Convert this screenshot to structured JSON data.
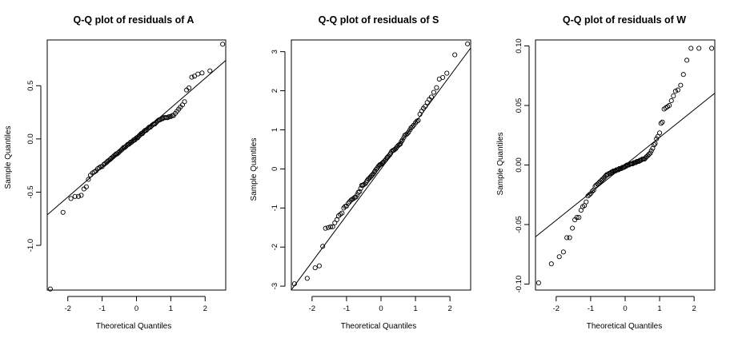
{
  "chart_data": [
    {
      "type": "scatter",
      "title": "Q-Q plot of residuals of A",
      "xlabel": "Theoretical Quantiles",
      "ylabel": "Sample Quantiles",
      "xlim": [
        -2.6,
        2.6
      ],
      "ylim": [
        -1.42,
        0.93
      ],
      "xticks": [
        -2,
        -1,
        0,
        1,
        2
      ],
      "yticks": [
        -1.0,
        -0.5,
        0.0,
        0.5
      ],
      "ytick_labels": [
        "-1.0",
        "-0.5",
        "0.0",
        "0.5"
      ],
      "reference_line": {
        "intercept": 0.012,
        "slope": 0.279
      },
      "x": [
        -2.51,
        -2.14,
        -1.91,
        -1.79,
        -1.69,
        -1.61,
        -1.53,
        -1.46,
        -1.4,
        -1.34,
        -1.28,
        -1.23,
        -1.18,
        -1.13,
        -1.08,
        -1.04,
        -1.0,
        -0.95,
        -0.91,
        -0.87,
        -0.84,
        -0.8,
        -0.76,
        -0.73,
        -0.69,
        -0.66,
        -0.62,
        -0.59,
        -0.56,
        -0.53,
        -0.5,
        -0.46,
        -0.43,
        -0.4,
        -0.37,
        -0.34,
        -0.31,
        -0.28,
        -0.25,
        -0.22,
        -0.19,
        -0.17,
        -0.14,
        -0.11,
        -0.08,
        -0.05,
        -0.03,
        0.0,
        0.03,
        0.05,
        0.08,
        0.11,
        0.14,
        0.17,
        0.19,
        0.22,
        0.25,
        0.28,
        0.31,
        0.34,
        0.37,
        0.4,
        0.43,
        0.46,
        0.5,
        0.53,
        0.56,
        0.59,
        0.62,
        0.66,
        0.69,
        0.73,
        0.76,
        0.8,
        0.84,
        0.87,
        0.91,
        0.95,
        1.0,
        1.04,
        1.08,
        1.13,
        1.18,
        1.23,
        1.28,
        1.34,
        1.4,
        1.46,
        1.53,
        1.61,
        1.69,
        1.79,
        1.91,
        2.14,
        2.51
      ],
      "y": [
        -1.41,
        -0.69,
        -0.56,
        -0.54,
        -0.54,
        -0.53,
        -0.47,
        -0.45,
        -0.38,
        -0.34,
        -0.32,
        -0.31,
        -0.3,
        -0.28,
        -0.27,
        -0.26,
        -0.26,
        -0.24,
        -0.23,
        -0.22,
        -0.21,
        -0.2,
        -0.19,
        -0.18,
        -0.17,
        -0.16,
        -0.15,
        -0.14,
        -0.14,
        -0.13,
        -0.12,
        -0.11,
        -0.1,
        -0.09,
        -0.08,
        -0.08,
        -0.07,
        -0.06,
        -0.05,
        -0.05,
        -0.04,
        -0.03,
        -0.03,
        -0.02,
        -0.01,
        -0.01,
        0.0,
        0.01,
        0.01,
        0.02,
        0.03,
        0.04,
        0.05,
        0.05,
        0.06,
        0.07,
        0.08,
        0.08,
        0.09,
        0.1,
        0.11,
        0.11,
        0.12,
        0.13,
        0.14,
        0.14,
        0.15,
        0.16,
        0.17,
        0.18,
        0.18,
        0.19,
        0.19,
        0.2,
        0.2,
        0.2,
        0.2,
        0.21,
        0.21,
        0.22,
        0.22,
        0.24,
        0.26,
        0.28,
        0.3,
        0.32,
        0.35,
        0.46,
        0.48,
        0.58,
        0.59,
        0.61,
        0.62,
        0.64,
        0.89
      ]
    },
    {
      "type": "scatter",
      "title": "Q-Q plot of residuals of S",
      "xlabel": "Theoretical Quantiles",
      "ylabel": "Sample Quantiles",
      "xlim": [
        -2.6,
        2.6
      ],
      "ylim": [
        -3.1,
        3.3
      ],
      "xticks": [
        -2,
        -1,
        0,
        1,
        2
      ],
      "yticks": [
        -3,
        -2,
        -1,
        0,
        1,
        2,
        3
      ],
      "ytick_labels": [
        "-3",
        "-2",
        "-1",
        "0",
        "1",
        "2",
        "3"
      ],
      "reference_line": {
        "intercept": 0.0,
        "slope": 1.19
      },
      "x": [
        -2.51,
        -2.14,
        -1.91,
        -1.79,
        -1.69,
        -1.61,
        -1.53,
        -1.46,
        -1.4,
        -1.34,
        -1.28,
        -1.23,
        -1.18,
        -1.13,
        -1.08,
        -1.04,
        -1.0,
        -0.95,
        -0.91,
        -0.87,
        -0.84,
        -0.8,
        -0.76,
        -0.73,
        -0.69,
        -0.66,
        -0.62,
        -0.59,
        -0.56,
        -0.53,
        -0.5,
        -0.46,
        -0.43,
        -0.4,
        -0.37,
        -0.34,
        -0.31,
        -0.28,
        -0.25,
        -0.22,
        -0.19,
        -0.17,
        -0.14,
        -0.11,
        -0.08,
        -0.05,
        -0.03,
        0.0,
        0.03,
        0.05,
        0.08,
        0.11,
        0.14,
        0.17,
        0.19,
        0.22,
        0.25,
        0.28,
        0.31,
        0.34,
        0.37,
        0.4,
        0.43,
        0.46,
        0.5,
        0.53,
        0.56,
        0.59,
        0.62,
        0.66,
        0.69,
        0.73,
        0.76,
        0.8,
        0.84,
        0.87,
        0.91,
        0.95,
        1.0,
        1.04,
        1.08,
        1.13,
        1.18,
        1.23,
        1.28,
        1.34,
        1.4,
        1.46,
        1.53,
        1.61,
        1.69,
        1.79,
        1.91,
        2.14,
        2.51
      ],
      "y": [
        -2.94,
        -2.8,
        -2.53,
        -2.48,
        -1.98,
        -1.52,
        -1.5,
        -1.48,
        -1.48,
        -1.38,
        -1.3,
        -1.2,
        -1.16,
        -1.13,
        -1.0,
        -0.96,
        -0.95,
        -0.88,
        -0.84,
        -0.8,
        -0.78,
        -0.76,
        -0.73,
        -0.72,
        -0.66,
        -0.6,
        -0.58,
        -0.5,
        -0.42,
        -0.42,
        -0.4,
        -0.38,
        -0.34,
        -0.3,
        -0.26,
        -0.24,
        -0.21,
        -0.18,
        -0.15,
        -0.12,
        -0.08,
        -0.05,
        -0.01,
        0.02,
        0.06,
        0.09,
        0.11,
        0.12,
        0.14,
        0.16,
        0.18,
        0.21,
        0.24,
        0.28,
        0.3,
        0.33,
        0.36,
        0.4,
        0.45,
        0.47,
        0.48,
        0.5,
        0.52,
        0.56,
        0.6,
        0.62,
        0.64,
        0.7,
        0.74,
        0.8,
        0.86,
        0.88,
        0.9,
        0.94,
        1.0,
        1.05,
        1.08,
        1.12,
        1.18,
        1.22,
        1.24,
        1.4,
        1.48,
        1.55,
        1.6,
        1.7,
        1.78,
        1.84,
        1.96,
        2.08,
        2.3,
        2.34,
        2.45,
        2.92,
        3.2
      ]
    },
    {
      "type": "scatter",
      "title": "Q-Q plot of residuals of W",
      "xlabel": "Theoretical Quantiles",
      "ylabel": "Sample Quantiles",
      "xlim": [
        -2.6,
        2.6
      ],
      "ylim": [
        -0.105,
        0.105
      ],
      "xticks": [
        -2,
        -1,
        0,
        1,
        2
      ],
      "yticks": [
        -0.1,
        -0.05,
        0.0,
        0.05,
        0.1
      ],
      "ytick_labels": [
        "-0.10",
        "-0.05",
        "0.00",
        "0.05",
        "0.10"
      ],
      "reference_line": {
        "intercept": 0.0,
        "slope": 0.0232
      },
      "x": [
        -2.51,
        -2.14,
        -1.91,
        -1.79,
        -1.69,
        -1.61,
        -1.53,
        -1.46,
        -1.4,
        -1.34,
        -1.28,
        -1.23,
        -1.18,
        -1.13,
        -1.08,
        -1.04,
        -1.0,
        -0.95,
        -0.91,
        -0.87,
        -0.84,
        -0.8,
        -0.76,
        -0.73,
        -0.69,
        -0.66,
        -0.62,
        -0.59,
        -0.56,
        -0.53,
        -0.5,
        -0.46,
        -0.43,
        -0.4,
        -0.37,
        -0.34,
        -0.31,
        -0.28,
        -0.25,
        -0.22,
        -0.19,
        -0.17,
        -0.14,
        -0.11,
        -0.08,
        -0.05,
        -0.03,
        0.0,
        0.03,
        0.05,
        0.08,
        0.11,
        0.14,
        0.17,
        0.19,
        0.22,
        0.25,
        0.28,
        0.31,
        0.34,
        0.37,
        0.4,
        0.43,
        0.46,
        0.5,
        0.53,
        0.56,
        0.59,
        0.62,
        0.66,
        0.69,
        0.73,
        0.76,
        0.8,
        0.84,
        0.87,
        0.91,
        0.95,
        1.0,
        1.04,
        1.08,
        1.13,
        1.18,
        1.23,
        1.28,
        1.34,
        1.4,
        1.46,
        1.53,
        1.61,
        1.69,
        1.79,
        1.91,
        2.14,
        2.51
      ],
      "y": [
        -0.099,
        -0.083,
        -0.077,
        -0.073,
        -0.061,
        -0.061,
        -0.053,
        -0.046,
        -0.044,
        -0.044,
        -0.038,
        -0.035,
        -0.034,
        -0.031,
        -0.026,
        -0.025,
        -0.024,
        -0.022,
        -0.021,
        -0.018,
        -0.017,
        -0.016,
        -0.015,
        -0.014,
        -0.013,
        -0.012,
        -0.011,
        -0.01,
        -0.009,
        -0.008,
        -0.008,
        -0.007,
        -0.007,
        -0.006,
        -0.006,
        -0.005,
        -0.005,
        -0.005,
        -0.004,
        -0.004,
        -0.004,
        -0.003,
        -0.003,
        -0.003,
        -0.002,
        -0.002,
        -0.002,
        -0.001,
        -0.001,
        0.0,
        0.0,
        0.0,
        0.001,
        0.001,
        0.001,
        0.001,
        0.002,
        0.002,
        0.002,
        0.003,
        0.003,
        0.003,
        0.004,
        0.004,
        0.005,
        0.005,
        0.005,
        0.006,
        0.007,
        0.008,
        0.009,
        0.01,
        0.012,
        0.014,
        0.017,
        0.018,
        0.022,
        0.024,
        0.027,
        0.035,
        0.036,
        0.047,
        0.048,
        0.049,
        0.05,
        0.054,
        0.058,
        0.062,
        0.063,
        0.067,
        0.076,
        0.088,
        0.098,
        0.098,
        0.098
      ]
    }
  ]
}
